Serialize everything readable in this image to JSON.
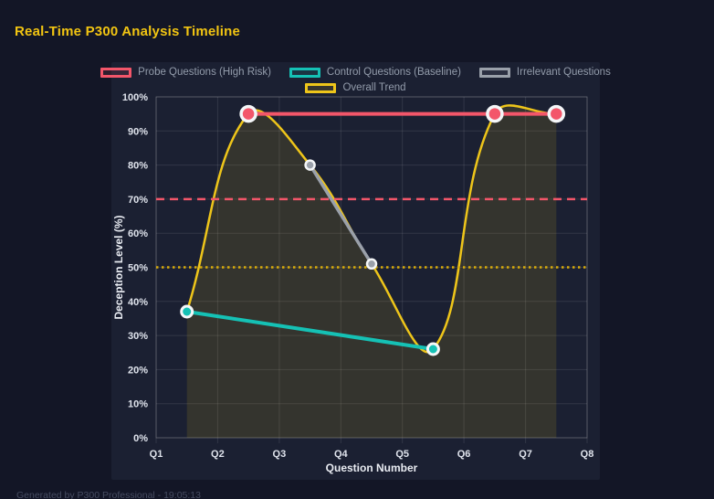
{
  "page": {
    "title": "Real-Time P300 Analysis Timeline",
    "footer": "Generated by P300 Professional - 19:05:13"
  },
  "colors": {
    "background": "#131626",
    "panel": "#1b2032",
    "title_text": "#f2c512",
    "grid": "rgba(255,255,255,0.10)",
    "plot_border": "rgba(255,255,255,0.18)",
    "tick_text": "#dfe3ec",
    "axis_title_text": "#e9ecf2",
    "legend_text": "#939cab",
    "point_border": "#f4f6f8"
  },
  "chart_data": {
    "type": "line",
    "title": "Real-Time P300 Analysis Timeline",
    "xlabel": "Question Number",
    "ylabel": "Deception Level (%)",
    "x_ticks": [
      "Q1",
      "Q2",
      "Q3",
      "Q4",
      "Q5",
      "Q6",
      "Q7",
      "Q8"
    ],
    "y_ticks": [
      "0%",
      "10%",
      "20%",
      "30%",
      "40%",
      "50%",
      "60%",
      "70%",
      "80%",
      "90%",
      "100%"
    ],
    "xlim": [
      1,
      8
    ],
    "ylim": [
      0,
      100
    ],
    "grid": true,
    "legend_position": "top",
    "series": [
      {
        "name": "Probe Questions (High Risk)",
        "color": "#f3566a",
        "line_width": 4,
        "point_radius": 8,
        "point_border_width": 3.5,
        "data": [
          {
            "x": 2.5,
            "y": 95
          },
          {
            "x": 6.5,
            "y": 95
          },
          {
            "x": 7.5,
            "y": 95
          }
        ]
      },
      {
        "name": "Control Questions (Baseline)",
        "color": "#15c1b5",
        "line_width": 4,
        "point_radius": 6,
        "point_border_width": 3,
        "data": [
          {
            "x": 1.5,
            "y": 37
          },
          {
            "x": 5.5,
            "y": 26
          }
        ]
      },
      {
        "name": "Irrelevant Questions",
        "color": "#9aa0aa",
        "line_width": 3.5,
        "point_radius": 5,
        "point_border_width": 2.5,
        "data": [
          {
            "x": 3.5,
            "y": 80
          },
          {
            "x": 4.5,
            "y": 51
          }
        ]
      },
      {
        "name": "Overall Trend",
        "color": "#eec51a",
        "line_width": 2.5,
        "point_radius": 0,
        "smooth": true,
        "tension": 0.4,
        "fill": true,
        "fill_color": "rgba(238,197,26,0.12)",
        "data": [
          {
            "x": 1.5,
            "y": 37
          },
          {
            "x": 2.5,
            "y": 95
          },
          {
            "x": 3.5,
            "y": 80
          },
          {
            "x": 4.5,
            "y": 51
          },
          {
            "x": 5.5,
            "y": 26
          },
          {
            "x": 6.5,
            "y": 95
          },
          {
            "x": 7.5,
            "y": 95
          }
        ]
      }
    ],
    "reference_lines": [
      {
        "y": 70,
        "color": "#f3566a",
        "style": "dashed"
      },
      {
        "y": 50,
        "color": "#d8ab0b",
        "style": "dotted"
      }
    ]
  }
}
